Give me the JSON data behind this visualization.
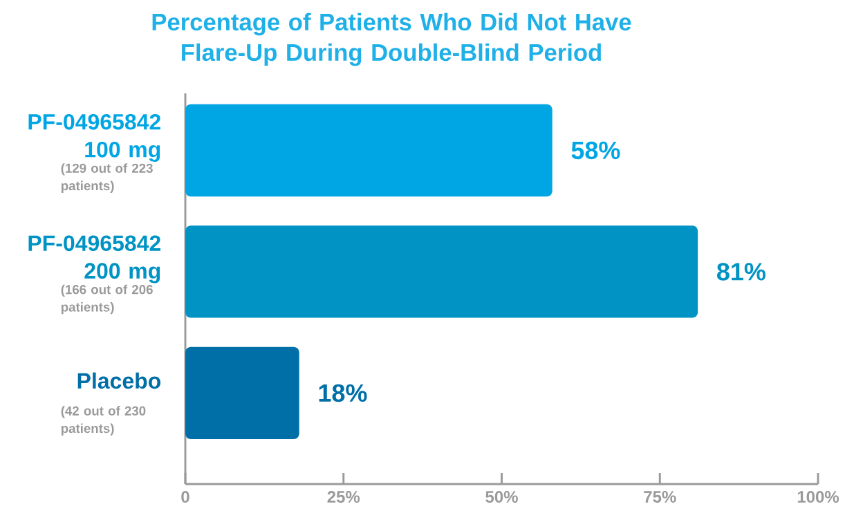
{
  "chart_data": {
    "type": "bar",
    "orientation": "horizontal",
    "title": "Percentage of Patients Who Did Not Have Flare-Up During Double-Blind Period",
    "categories": [
      "PF-04965842 100 mg",
      "PF-04965842 200 mg",
      "Placebo"
    ],
    "values": [
      58,
      81,
      18
    ],
    "colors": [
      "#00a6e3",
      "#0093c4",
      "#006fa8"
    ],
    "value_labels": [
      "58%",
      "81%",
      "18%"
    ],
    "annotations": [
      "(129 out of 223 patients)",
      "(166 out of 206 patients)",
      "(42 out of 230 patients)"
    ],
    "xlim": [
      0,
      100
    ],
    "xticks": [
      0,
      {
        "value": 25,
        "label": "25%"
      },
      {
        "value": 50,
        "label": "50%"
      },
      {
        "value": 75,
        "label": "75%"
      },
      {
        "value": 100,
        "label": "100%"
      }
    ]
  }
}
